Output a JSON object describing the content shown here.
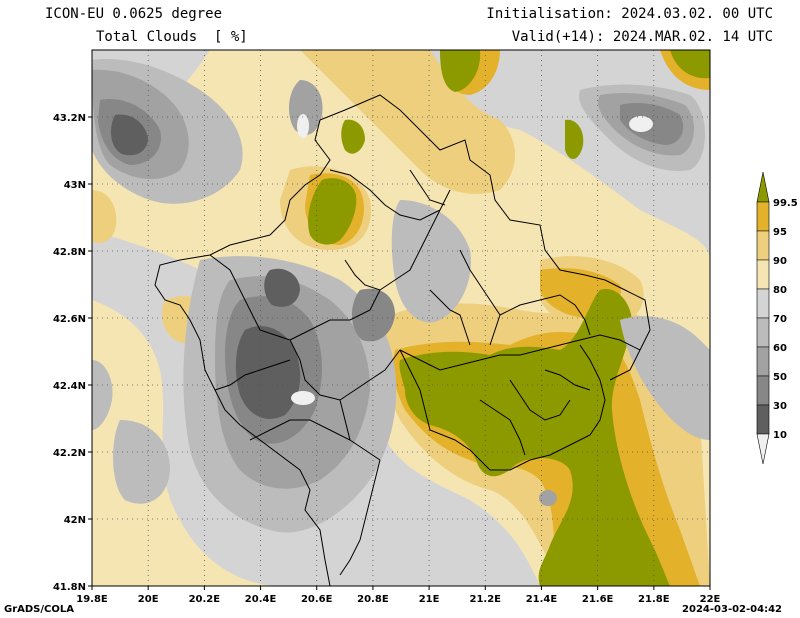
{
  "header": {
    "model": "ICON-EU 0.0625 degree",
    "field": "Total Clouds  [ %]",
    "init": "Initialisation: 2024.03.02. 00 UTC",
    "valid": "Valid(+14): 2024.MAR.02. 14 UTC"
  },
  "map": {
    "lon_labels": [
      "19.8E",
      "20E",
      "20.2E",
      "20.4E",
      "20.6E",
      "20.8E",
      "21E",
      "21.2E",
      "21.4E",
      "21.6E",
      "21.8E",
      "22E"
    ],
    "lat_labels": [
      "41.8N",
      "42N",
      "42.2N",
      "42.4N",
      "42.6N",
      "42.8N",
      "43N",
      "43.2N"
    ],
    "lon_range": [
      19.8,
      22.0
    ],
    "lat_range": [
      41.8,
      43.4
    ]
  },
  "colorbar": {
    "labels": [
      "99.5",
      "95",
      "90",
      "80",
      "70",
      "60",
      "50",
      "30",
      "10"
    ],
    "colors": [
      "#8c9a00",
      "#e3b12a",
      "#edcf7e",
      "#f4e5b3",
      "#d4d4d4",
      "#bcbcbc",
      "#a2a2a2",
      "#878787",
      "#5f5f5f",
      "#f0f0f0"
    ]
  },
  "footer": {
    "left": "GrADS/COLA",
    "right": "2024-03-02-04:42"
  }
}
